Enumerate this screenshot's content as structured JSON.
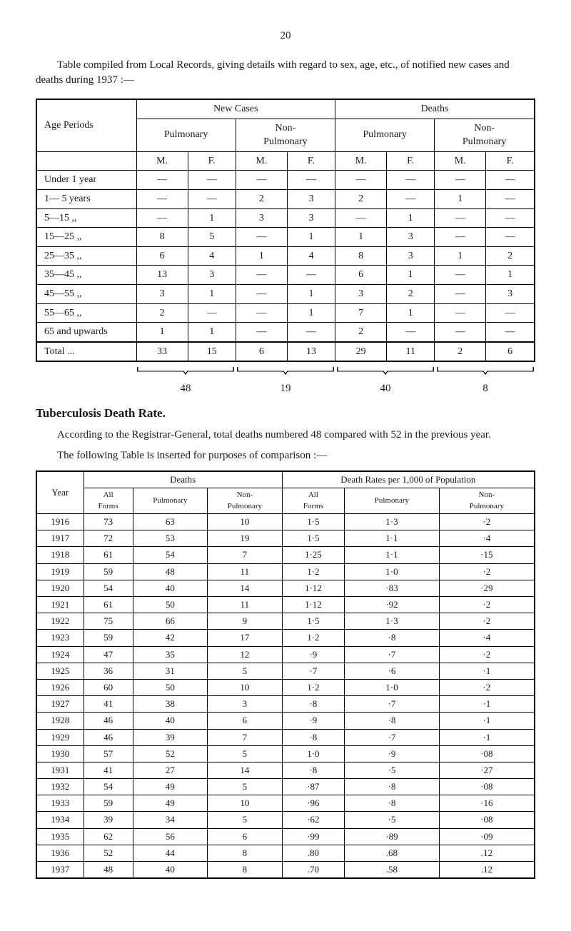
{
  "page_number": "20",
  "intro_text": "Table compiled from Local Records, giving details with regard to sex, age, etc., of notified new cases and deaths during 1937 :—",
  "table1": {
    "headers": {
      "age_periods": "Age Periods",
      "new_cases": "New Cases",
      "deaths": "Deaths",
      "pulmonary": "Pulmonary",
      "non_pulmonary": "Non-\nPulmonary",
      "m": "M.",
      "f": "F."
    },
    "rows": [
      {
        "label": "Under 1 year",
        "cells": [
          "—",
          "—",
          "—",
          "—",
          "—",
          "—",
          "—",
          "—"
        ]
      },
      {
        "label": "1— 5 years",
        "cells": [
          "—",
          "—",
          "2",
          "3",
          "2",
          "—",
          "1",
          "—"
        ]
      },
      {
        "label": "5—15   ,,",
        "cells": [
          "—",
          "1",
          "3",
          "3",
          "—",
          "1",
          "—",
          "—"
        ]
      },
      {
        "label": "15—25   ,,",
        "cells": [
          "8",
          "5",
          "—",
          "1",
          "1",
          "3",
          "—",
          "—"
        ]
      },
      {
        "label": "25—35   ,,",
        "cells": [
          "6",
          "4",
          "1",
          "4",
          "8",
          "3",
          "1",
          "2"
        ]
      },
      {
        "label": "35—45   ,,",
        "cells": [
          "13",
          "3",
          "—",
          "—",
          "6",
          "1",
          "—",
          "1"
        ]
      },
      {
        "label": "45—55   ,,",
        "cells": [
          "3",
          "1",
          "—",
          "1",
          "3",
          "2",
          "—",
          "3"
        ]
      },
      {
        "label": "55—65   ,,",
        "cells": [
          "2",
          "—",
          "—",
          "1",
          "7",
          "1",
          "—",
          "—"
        ]
      },
      {
        "label": "65 and upwards",
        "cells": [
          "1",
          "1",
          "—",
          "—",
          "2",
          "—",
          "—",
          "—"
        ]
      }
    ],
    "total_row": {
      "label": "Total    ...",
      "cells": [
        "33",
        "15",
        "6",
        "13",
        "29",
        "11",
        "2",
        "6"
      ]
    },
    "brace_totals": [
      "48",
      "19",
      "40",
      "8"
    ]
  },
  "section_title": "Tuberculosis Death Rate.",
  "para1": "According to the Registrar-General, total deaths numbered 48 compared with 52 in the previous year.",
  "para2": "The following Table is inserted for purposes of comparison :—",
  "table2": {
    "headers": {
      "year": "Year",
      "deaths": "Deaths",
      "death_rates": "Death Rates per 1,000 of Population",
      "all_forms": "All\nForms",
      "pulmonary": "Pulmonary",
      "non_pulmonary": "Non-\nPulmonary"
    },
    "rows": [
      {
        "year": "1916",
        "d": [
          "73",
          "63",
          "10"
        ],
        "r": [
          "1·5",
          "1·3",
          "·2"
        ]
      },
      {
        "year": "1917",
        "d": [
          "72",
          "53",
          "19"
        ],
        "r": [
          "1·5",
          "1·1",
          "·4"
        ]
      },
      {
        "year": "1918",
        "d": [
          "61",
          "54",
          "7"
        ],
        "r": [
          "1·25",
          "1·1",
          "·15"
        ]
      },
      {
        "year": "1919",
        "d": [
          "59",
          "48",
          "11"
        ],
        "r": [
          "1·2",
          "1·0",
          "·2"
        ]
      },
      {
        "year": "1920",
        "d": [
          "54",
          "40",
          "14"
        ],
        "r": [
          "1·12",
          "·83",
          "·29"
        ]
      },
      {
        "year": "1921",
        "d": [
          "61",
          "50",
          "11"
        ],
        "r": [
          "1·12",
          "·92",
          "·2"
        ]
      },
      {
        "year": "1922",
        "d": [
          "75",
          "66",
          "9"
        ],
        "r": [
          "1·5",
          "1·3",
          "·2"
        ]
      },
      {
        "year": "1923",
        "d": [
          "59",
          "42",
          "17"
        ],
        "r": [
          "1·2",
          "·8",
          "·4"
        ]
      },
      {
        "year": "1924",
        "d": [
          "47",
          "35",
          "12"
        ],
        "r": [
          "·9",
          "·7",
          "·2"
        ]
      },
      {
        "year": "1925",
        "d": [
          "36",
          "31",
          "5"
        ],
        "r": [
          "·7",
          "·6",
          "·1"
        ]
      },
      {
        "year": "1926",
        "d": [
          "60",
          "50",
          "10"
        ],
        "r": [
          "1·2",
          "1·0",
          "·2"
        ]
      },
      {
        "year": "1927",
        "d": [
          "41",
          "38",
          "3"
        ],
        "r": [
          "·8",
          "·7",
          "·1"
        ]
      },
      {
        "year": "1928",
        "d": [
          "46",
          "40",
          "6"
        ],
        "r": [
          "·9",
          "·8",
          "·1"
        ]
      },
      {
        "year": "1929",
        "d": [
          "46",
          "39",
          "7"
        ],
        "r": [
          "·8",
          "·7",
          "·1"
        ]
      },
      {
        "year": "1930",
        "d": [
          "57",
          "52",
          "5"
        ],
        "r": [
          "1·0",
          "·9",
          "·08"
        ]
      },
      {
        "year": "1931",
        "d": [
          "41",
          "27",
          "14"
        ],
        "r": [
          "·8",
          "·5",
          "·27"
        ]
      },
      {
        "year": "1932",
        "d": [
          "54",
          "49",
          "5"
        ],
        "r": [
          "·87",
          "·8",
          "·08"
        ]
      },
      {
        "year": "1933",
        "d": [
          "59",
          "49",
          "10"
        ],
        "r": [
          "·96",
          "·8",
          "·16"
        ]
      },
      {
        "year": "1934",
        "d": [
          "39",
          "34",
          "5"
        ],
        "r": [
          "·62",
          "·5",
          "·08"
        ]
      },
      {
        "year": "1935",
        "d": [
          "62",
          "56",
          "6"
        ],
        "r": [
          "·99",
          "·89",
          "·09"
        ]
      },
      {
        "year": "1936",
        "d": [
          "52",
          "44",
          "8"
        ],
        "r": [
          ".80",
          ".68",
          ".12"
        ]
      },
      {
        "year": "1937",
        "d": [
          "48",
          "40",
          "8"
        ],
        "r": [
          ".70",
          ".58",
          ".12"
        ]
      }
    ]
  }
}
